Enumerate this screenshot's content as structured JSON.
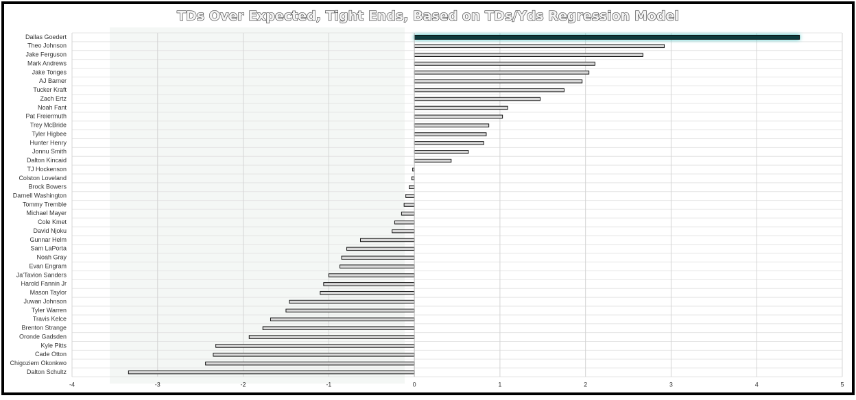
{
  "chart_data": {
    "type": "barh",
    "title": "TDs Over Expected, Tight Ends, Based on TDs/Yds Regression Model",
    "categories": [
      "Dallas Goedert",
      "Theo Johnson",
      "Jake Ferguson",
      "Mark Andrews",
      "Jake Tonges",
      "AJ Barner",
      "Tucker Kraft",
      "Zach Ertz",
      "Noah Fant",
      "Pat Freiermuth",
      "Trey McBride",
      "Tyler Higbee",
      "Hunter Henry",
      "Jonnu Smith",
      "Dalton Kincaid",
      "TJ Hockenson",
      "Colston Loveland",
      "Brock Bowers",
      "Darnell Washington",
      "Tommy Tremble",
      "Michael Mayer",
      "Cole Kmet",
      "David Njoku",
      "Gunnar Helm",
      "Sam LaPorta",
      "Noah Gray",
      "Evan Engram",
      "Ja'Tavion Sanders",
      "Harold Fannin Jr",
      "Mason Taylor",
      "Juwan Johnson",
      "Tyler Warren",
      "Travis Kelce",
      "Brenton Strange",
      "Oronde Gadsden",
      "Kyle Pitts",
      "Cade Otton",
      "Chigoziem Okonkwo",
      "Dalton Schultz"
    ],
    "values": [
      4.5,
      2.92,
      2.67,
      2.11,
      2.04,
      1.96,
      1.75,
      1.47,
      1.09,
      1.03,
      0.87,
      0.84,
      0.81,
      0.63,
      0.43,
      -0.02,
      -0.03,
      -0.06,
      -0.1,
      -0.12,
      -0.15,
      -0.23,
      -0.26,
      -0.63,
      -0.79,
      -0.85,
      -0.87,
      -1.0,
      -1.06,
      -1.1,
      -1.46,
      -1.5,
      -1.68,
      -1.77,
      -1.93,
      -2.32,
      -2.35,
      -2.44,
      -3.34
    ],
    "colors": [
      "#0c3b3e",
      "#d9d9d9",
      "#d9d9d9",
      "#d9d9d9",
      "#d9d9d9",
      "#d9d9d9",
      "#d9d9d9",
      "#d9d9d9",
      "#d9d9d9",
      "#d9d9d9",
      "#d9d9d9",
      "#d9d9d9",
      "#d9d9d9",
      "#d9d9d9",
      "#d9d9d9",
      "#d9d9d9",
      "#d9d9d9",
      "#d9d9d9",
      "#d9d9d9",
      "#d9d9d9",
      "#d9d9d9",
      "#d9d9d9",
      "#d9d9d9",
      "#d9d9d9",
      "#d9d9d9",
      "#d9d9d9",
      "#d9d9d9",
      "#d9d9d9",
      "#d9d9d9",
      "#d9d9d9",
      "#d9d9d9",
      "#d9d9d9",
      "#d9d9d9",
      "#d9d9d9",
      "#d9d9d9",
      "#d9d9d9",
      "#d9d9d9",
      "#d9d9d9",
      "#d9d9d9"
    ],
    "xlim": [
      -4,
      5
    ],
    "xticks": [
      -4,
      -3,
      -2,
      -1,
      0,
      1,
      2,
      3,
      4,
      5
    ],
    "grid": true
  }
}
